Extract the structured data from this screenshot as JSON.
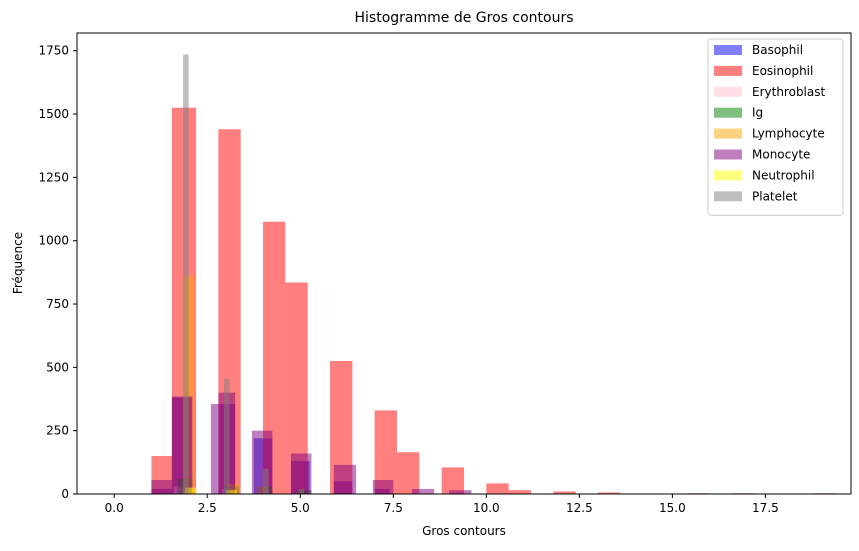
{
  "chart_data": {
    "type": "bar",
    "title": "Histogramme de Gros contours",
    "xlabel": "Gros contours",
    "ylabel": "Fréquence",
    "xlim": [
      -1.0,
      19.8
    ],
    "ylim": [
      0,
      1820
    ],
    "xticks": [
      0.0,
      2.5,
      5.0,
      7.5,
      10.0,
      12.5,
      15.0,
      17.5
    ],
    "xtick_labels": [
      "0.0",
      "2.5",
      "5.0",
      "7.5",
      "10.0",
      "12.5",
      "15.0",
      "17.5"
    ],
    "yticks": [
      0,
      250,
      500,
      750,
      1000,
      1250,
      1500,
      1750
    ],
    "ytick_labels": [
      "0",
      "250",
      "500",
      "750",
      "1000",
      "1250",
      "1500",
      "1750"
    ],
    "grid": false,
    "legend_position": "top-right",
    "series": [
      {
        "name": "Basophil",
        "color": "#0000ff",
        "alpha": 0.5,
        "bars": [
          {
            "x0": 1.0,
            "x1": 1.55,
            "y": 20
          },
          {
            "x0": 1.55,
            "x1": 2.1,
            "y": 380
          },
          {
            "x0": 2.8,
            "x1": 3.25,
            "y": 400
          },
          {
            "x0": 3.75,
            "x1": 4.25,
            "y": 220
          },
          {
            "x0": 4.75,
            "x1": 5.25,
            "y": 130
          },
          {
            "x0": 5.9,
            "x1": 6.4,
            "y": 50
          },
          {
            "x0": 7.0,
            "x1": 7.4,
            "y": 20
          }
        ]
      },
      {
        "name": "Eosinophil",
        "color": "#ff0000",
        "alpha": 0.5,
        "bars": [
          {
            "x0": 1.0,
            "x1": 1.55,
            "y": 150
          },
          {
            "x0": 1.55,
            "x1": 2.2,
            "y": 1525
          },
          {
            "x0": 2.8,
            "x1": 3.4,
            "y": 1440
          },
          {
            "x0": 4.0,
            "x1": 4.6,
            "y": 1075
          },
          {
            "x0": 4.6,
            "x1": 5.2,
            "y": 835
          },
          {
            "x0": 5.8,
            "x1": 6.4,
            "y": 525
          },
          {
            "x0": 7.0,
            "x1": 7.6,
            "y": 330
          },
          {
            "x0": 7.6,
            "x1": 8.2,
            "y": 165
          },
          {
            "x0": 8.8,
            "x1": 9.4,
            "y": 105
          },
          {
            "x0": 10.0,
            "x1": 10.6,
            "y": 42
          },
          {
            "x0": 10.6,
            "x1": 11.2,
            "y": 15
          },
          {
            "x0": 11.8,
            "x1": 12.4,
            "y": 10
          },
          {
            "x0": 13.0,
            "x1": 13.6,
            "y": 6
          },
          {
            "x0": 15.4,
            "x1": 16.0,
            "y": 3
          },
          {
            "x0": 16.6,
            "x1": 17.2,
            "y": 3
          },
          {
            "x0": 18.8,
            "x1": 19.4,
            "y": 3
          }
        ]
      },
      {
        "name": "Erythroblast",
        "color": "#ffc0cb",
        "alpha": 0.5,
        "bars": [
          {
            "x0": 1.6,
            "x1": 2.1,
            "y": 30
          },
          {
            "x0": 2.9,
            "x1": 3.3,
            "y": 20
          }
        ]
      },
      {
        "name": "Ig",
        "color": "#008000",
        "alpha": 0.5,
        "bars": [
          {
            "x0": 1.7,
            "x1": 2.1,
            "y": 60
          },
          {
            "x0": 2.95,
            "x1": 3.35,
            "y": 30
          },
          {
            "x0": 3.85,
            "x1": 4.25,
            "y": 30
          },
          {
            "x0": 4.9,
            "x1": 5.3,
            "y": 15
          }
        ]
      },
      {
        "name": "Lymphocyte",
        "color": "#ffa500",
        "alpha": 0.5,
        "bars": [
          {
            "x0": 1.85,
            "x1": 2.15,
            "y": 860
          },
          {
            "x0": 3.05,
            "x1": 3.35,
            "y": 40
          },
          {
            "x0": 3.85,
            "x1": 4.15,
            "y": 30
          }
        ]
      },
      {
        "name": "Monocyte",
        "color": "#800080",
        "alpha": 0.5,
        "bars": [
          {
            "x0": 1.0,
            "x1": 1.55,
            "y": 55
          },
          {
            "x0": 1.55,
            "x1": 2.1,
            "y": 385
          },
          {
            "x0": 2.6,
            "x1": 3.25,
            "y": 355
          },
          {
            "x0": 3.7,
            "x1": 4.25,
            "y": 250
          },
          {
            "x0": 4.75,
            "x1": 5.3,
            "y": 160
          },
          {
            "x0": 5.9,
            "x1": 6.5,
            "y": 115
          },
          {
            "x0": 6.95,
            "x1": 7.5,
            "y": 55
          },
          {
            "x0": 8.0,
            "x1": 8.6,
            "y": 20
          },
          {
            "x0": 9.0,
            "x1": 9.6,
            "y": 15
          }
        ]
      },
      {
        "name": "Neutrophil",
        "color": "#ffff00",
        "alpha": 0.5,
        "bars": [
          {
            "x0": 1.9,
            "x1": 2.2,
            "y": 25
          },
          {
            "x0": 3.0,
            "x1": 3.3,
            "y": 15
          }
        ]
      },
      {
        "name": "Platelet",
        "color": "#808080",
        "alpha": 0.5,
        "bars": [
          {
            "x0": 1.85,
            "x1": 2.0,
            "y": 1735
          },
          {
            "x0": 2.95,
            "x1": 3.1,
            "y": 455
          },
          {
            "x0": 4.0,
            "x1": 4.15,
            "y": 100
          },
          {
            "x0": 4.95,
            "x1": 5.1,
            "y": 20
          }
        ]
      }
    ]
  }
}
